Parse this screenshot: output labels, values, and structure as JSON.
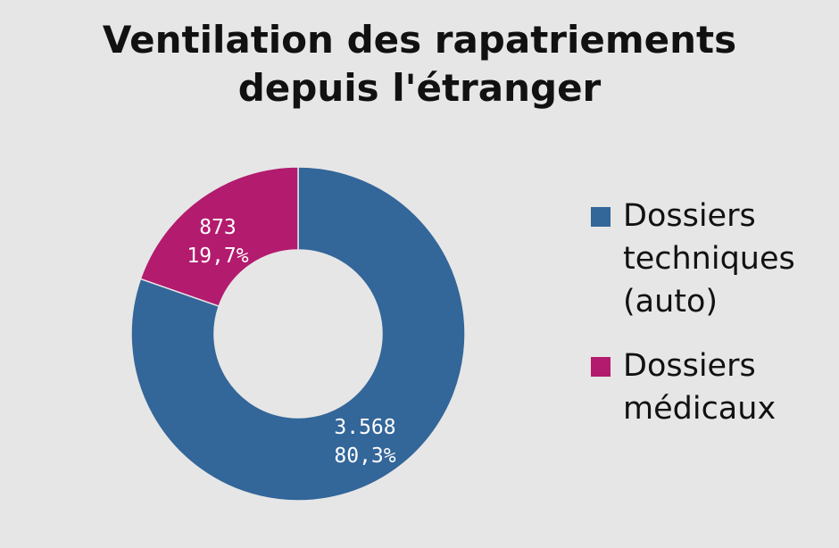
{
  "chart_data": {
    "type": "pie",
    "variant": "donut",
    "title": [
      "Ventilation des rapatriements",
      "depuis l'étranger"
    ],
    "slices": [
      {
        "name": "Dossiers techniques (auto)",
        "legend_lines": [
          "Dossiers",
          "techniques",
          "(auto)"
        ],
        "value": 3568,
        "value_label": "3.568",
        "percent_label": "80,3%",
        "color": "#336699"
      },
      {
        "name": "Dossiers médicaux",
        "legend_lines": [
          "Dossiers",
          "médicaux"
        ],
        "value": 873,
        "value_label": "873",
        "percent_label": "19,7%",
        "color": "#b31b6e"
      }
    ],
    "legend_position": "right"
  },
  "colors": {
    "background": "#e6e6e6",
    "label_text": "#ffffff"
  }
}
